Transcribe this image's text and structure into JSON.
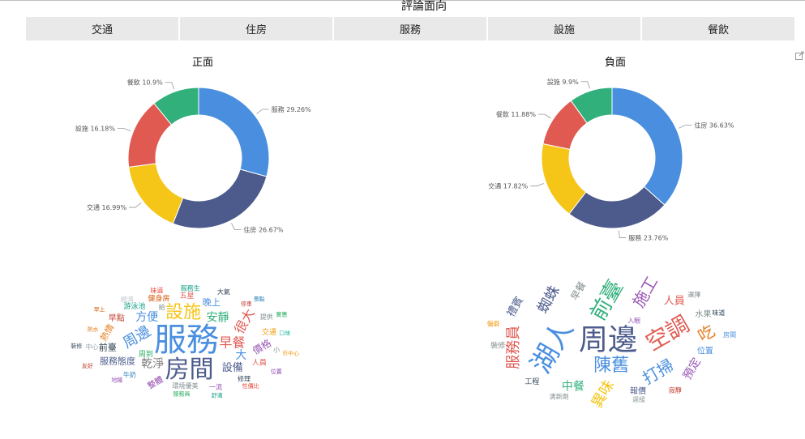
{
  "page": {
    "title": "評論面向"
  },
  "tabs": [
    {
      "label": "交通"
    },
    {
      "label": "住房"
    },
    {
      "label": "服務"
    },
    {
      "label": "設施"
    },
    {
      "label": "餐飲"
    }
  ],
  "colors": {
    "blue": "#4a8fdf",
    "navy": "#4c5b8c",
    "yellow": "#f5c518",
    "red": "#e05a52",
    "green": "#32b07c"
  },
  "chart_data": [
    {
      "type": "pie",
      "title": "正面",
      "donut": true,
      "slices": [
        {
          "label": "服務",
          "value": 29.26,
          "display": "服務 29.26%",
          "color": "#4a8fdf"
        },
        {
          "label": "住房",
          "value": 26.67,
          "display": "住房 26.67%",
          "color": "#4c5b8c"
        },
        {
          "label": "交通",
          "value": 16.99,
          "display": "交通 16.99%",
          "color": "#f5c518"
        },
        {
          "label": "設施",
          "value": 16.18,
          "display": "設施 16.18%",
          "color": "#e05a52"
        },
        {
          "label": "餐飲",
          "value": 10.9,
          "display": "餐飲 10.9%",
          "color": "#32b07c"
        }
      ]
    },
    {
      "type": "pie",
      "title": "負面",
      "donut": true,
      "slices": [
        {
          "label": "住房",
          "value": 36.63,
          "display": "住房 36.63%",
          "color": "#4a8fdf"
        },
        {
          "label": "服務",
          "value": 23.76,
          "display": "服務 23.76%",
          "color": "#4c5b8c"
        },
        {
          "label": "交通",
          "value": 17.82,
          "display": "交通 17.82%",
          "color": "#f5c518"
        },
        {
          "label": "餐飲",
          "value": 11.88,
          "display": "餐飲 11.88%",
          "color": "#e05a52"
        },
        {
          "label": "設施",
          "value": 9.9,
          "display": "設施 9.9%",
          "color": "#32b07c"
        }
      ]
    }
  ],
  "wordclouds": {
    "positive": {
      "words": [
        {
          "text": "服務",
          "size": 40,
          "color": "#4a8fdf",
          "rotate": 0
        },
        {
          "text": "房間",
          "size": 30,
          "color": "#4c5b8c",
          "rotate": 0
        },
        {
          "text": "設施",
          "size": 22,
          "color": "#f5c518",
          "rotate": 0
        },
        {
          "text": "周邊",
          "size": 18,
          "color": "#4a8fdf",
          "rotate": -30
        },
        {
          "text": "早餐",
          "size": 16,
          "color": "#e05a52",
          "rotate": 0
        },
        {
          "text": "安靜",
          "size": 14,
          "color": "#32b07c",
          "rotate": 0
        },
        {
          "text": "乾淨",
          "size": 14,
          "color": "#7a7a7a",
          "rotate": 0
        },
        {
          "text": "很大",
          "size": 16,
          "color": "#e05a52",
          "rotate": -60
        },
        {
          "text": "方便",
          "size": 14,
          "color": "#4a8fdf",
          "rotate": 0
        },
        {
          "text": "大",
          "size": 14,
          "color": "#4a8fdf",
          "rotate": 0
        },
        {
          "text": "設備",
          "size": 13,
          "color": "#4c5b8c",
          "rotate": 0
        },
        {
          "text": "價格",
          "size": 12,
          "color": "#9b59b6",
          "rotate": -30
        },
        {
          "text": "服務態度",
          "size": 11,
          "color": "#4c5b8c",
          "rotate": 0
        },
        {
          "text": "熱情",
          "size": 11,
          "color": "#e67e22",
          "rotate": -60
        },
        {
          "text": "晚上",
          "size": 11,
          "color": "#4a8fdf",
          "rotate": 0
        },
        {
          "text": "前臺",
          "size": 11,
          "color": "#2c3e50",
          "rotate": 0
        },
        {
          "text": "整體",
          "size": 10,
          "color": "#8e44ad",
          "rotate": -30
        },
        {
          "text": "早點",
          "size": 10,
          "color": "#c0392b",
          "rotate": 0
        },
        {
          "text": "游泳池",
          "size": 9,
          "color": "#16a085",
          "rotate": 0
        },
        {
          "text": "健身房",
          "size": 9,
          "color": "#d35400",
          "rotate": 0
        },
        {
          "text": "周到",
          "size": 9,
          "color": "#27ae60",
          "rotate": 0
        },
        {
          "text": "五星",
          "size": 9,
          "color": "#e05a52",
          "rotate": 0
        },
        {
          "text": "交通",
          "size": 9,
          "color": "#f39c12",
          "rotate": 0
        },
        {
          "text": "人員",
          "size": 9,
          "color": "#e05a52",
          "rotate": 0
        },
        {
          "text": "環境優美",
          "size": 8,
          "color": "#7f8c8d",
          "rotate": 0
        },
        {
          "text": "牛奶",
          "size": 8,
          "color": "#2980b9",
          "rotate": 0
        },
        {
          "text": "提供",
          "size": 8,
          "color": "#7f8c8d",
          "rotate": 0
        },
        {
          "text": "修理",
          "size": 8,
          "color": "#34495e",
          "rotate": 0
        },
        {
          "text": "一流",
          "size": 8,
          "color": "#8e44ad",
          "rotate": 0
        },
        {
          "text": "中心",
          "size": 8,
          "color": "#95a5a6",
          "rotate": 0
        },
        {
          "text": "經濟",
          "size": 8,
          "color": "#bdc3c7",
          "rotate": 0
        },
        {
          "text": "味道",
          "size": 8,
          "color": "#e74c3c",
          "rotate": 0
        },
        {
          "text": "服務生",
          "size": 8,
          "color": "#16a085",
          "rotate": 0
        },
        {
          "text": "大氣",
          "size": 8,
          "color": "#2c3e50",
          "rotate": 0
        },
        {
          "text": "給",
          "size": 8,
          "color": "#7f8c8d",
          "rotate": 0
        },
        {
          "text": "小",
          "size": 8,
          "color": "#7f8c8d",
          "rotate": 0
        },
        {
          "text": "停車",
          "size": 7,
          "color": "#c0392b",
          "rotate": 0
        },
        {
          "text": "服務員",
          "size": 7,
          "color": "#27ae60",
          "rotate": 0
        },
        {
          "text": "熱水",
          "size": 7,
          "color": "#e67e22",
          "rotate": 0
        },
        {
          "text": "口味",
          "size": 7,
          "color": "#1abc9c",
          "rotate": 0
        },
        {
          "text": "地鐵",
          "size": 7,
          "color": "#9b59b6",
          "rotate": 0
        },
        {
          "text": "早上",
          "size": 7,
          "color": "#d35400",
          "rotate": 0
        },
        {
          "text": "景點",
          "size": 7,
          "color": "#2980b9",
          "rotate": 0
        },
        {
          "text": "實惠",
          "size": 7,
          "color": "#27ae60",
          "rotate": 0
        },
        {
          "text": "市中心",
          "size": 7,
          "color": "#f39c12",
          "rotate": 0
        },
        {
          "text": "位置",
          "size": 7,
          "color": "#8e44ad",
          "rotate": 0
        },
        {
          "text": "性價比",
          "size": 7,
          "color": "#e74c3c",
          "rotate": 0
        },
        {
          "text": "舒適",
          "size": 7,
          "color": "#16a085",
          "rotate": 0
        },
        {
          "text": "友好",
          "size": 7,
          "color": "#c0392b",
          "rotate": 0
        },
        {
          "text": "裝修",
          "size": 7,
          "color": "#34495e",
          "rotate": 0
        }
      ]
    },
    "negative": {
      "words": [
        {
          "text": "周邊",
          "size": 36,
          "color": "#4c5b8c",
          "rotate": 0
        },
        {
          "text": "湖人",
          "size": 34,
          "color": "#4a8fdf",
          "rotate": -60
        },
        {
          "text": "空調",
          "size": 28,
          "color": "#e05a52",
          "rotate": -30
        },
        {
          "text": "前臺",
          "size": 26,
          "color": "#32b07c",
          "rotate": -60
        },
        {
          "text": "陳舊",
          "size": 22,
          "color": "#4a8fdf",
          "rotate": 0
        },
        {
          "text": "打掃",
          "size": 20,
          "color": "#4a8fdf",
          "rotate": -30
        },
        {
          "text": "施工",
          "size": 20,
          "color": "#9b59b6",
          "rotate": -60
        },
        {
          "text": "服務員",
          "size": 18,
          "color": "#e05a52",
          "rotate": -90
        },
        {
          "text": "蜘蛛",
          "size": 18,
          "color": "#4c5b8c",
          "rotate": -60
        },
        {
          "text": "異味",
          "size": 18,
          "color": "#f5c518",
          "rotate": -60
        },
        {
          "text": "吃",
          "size": 20,
          "color": "#e67e22",
          "rotate": -30
        },
        {
          "text": "中餐",
          "size": 14,
          "color": "#32b07c",
          "rotate": 0
        },
        {
          "text": "人員",
          "size": 13,
          "color": "#e05a52",
          "rotate": 0
        },
        {
          "text": "預定",
          "size": 14,
          "color": "#9b59b6",
          "rotate": -60
        },
        {
          "text": "禮賓",
          "size": 13,
          "color": "#4c5b8c",
          "rotate": -60
        },
        {
          "text": "早餐",
          "size": 12,
          "color": "#7f8c8d",
          "rotate": -60
        },
        {
          "text": "位置",
          "size": 10,
          "color": "#4a8fdf",
          "rotate": 0
        },
        {
          "text": "報價",
          "size": 10,
          "color": "#4c5b8c",
          "rotate": 0
        },
        {
          "text": "水果",
          "size": 10,
          "color": "#7f8c8d",
          "rotate": 0
        },
        {
          "text": "工程",
          "size": 9,
          "color": "#34495e",
          "rotate": 0
        },
        {
          "text": "裝修",
          "size": 9,
          "color": "#7f8c8d",
          "rotate": 0
        },
        {
          "text": "入眠",
          "size": 8,
          "color": "#9b59b6",
          "rotate": 0
        },
        {
          "text": "寂靜",
          "size": 8,
          "color": "#c0392b",
          "rotate": 0
        },
        {
          "text": "遲緩",
          "size": 8,
          "color": "#95a5a6",
          "rotate": 0
        },
        {
          "text": "清新劑",
          "size": 8,
          "color": "#7f8c8d",
          "rotate": 0
        },
        {
          "text": "偏僻",
          "size": 8,
          "color": "#f39c12",
          "rotate": 0
        },
        {
          "text": "選擇",
          "size": 8,
          "color": "#7f8c8d",
          "rotate": 0
        },
        {
          "text": "味道",
          "size": 8,
          "color": "#34495e",
          "rotate": 0
        },
        {
          "text": "房間",
          "size": 8,
          "color": "#4a8fdf",
          "rotate": 0
        }
      ]
    }
  }
}
